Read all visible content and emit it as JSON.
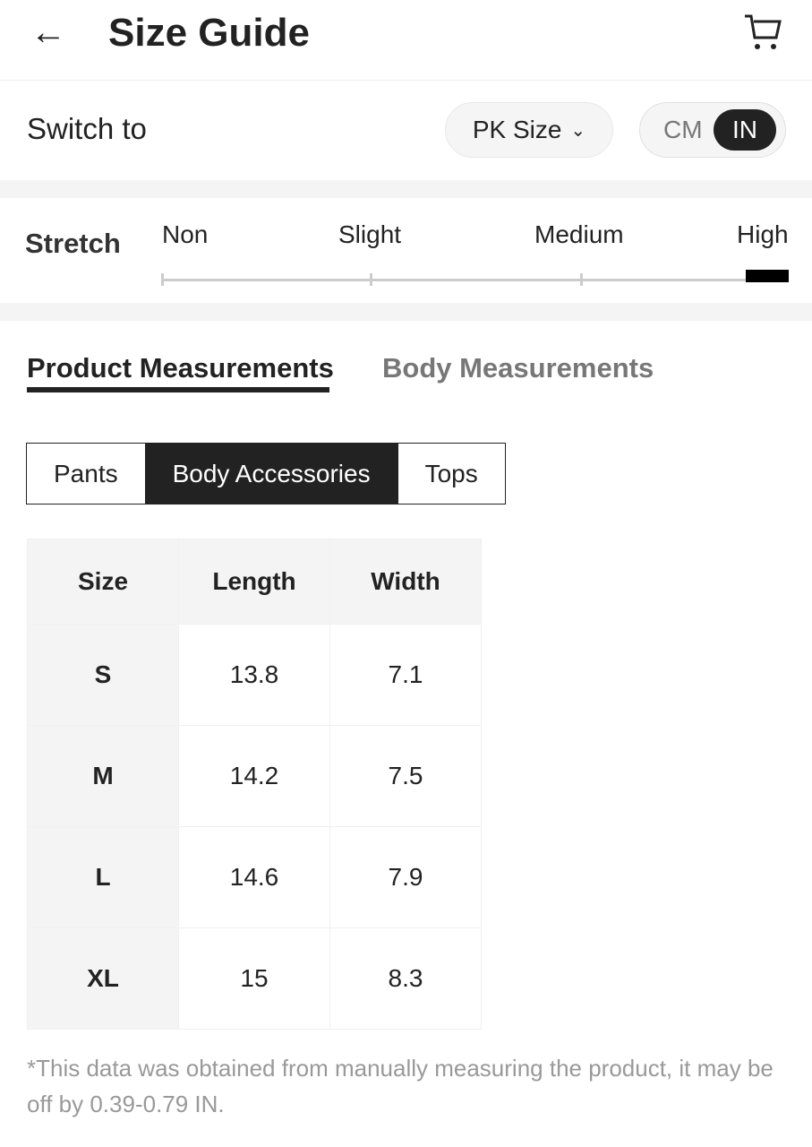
{
  "header": {
    "title": "Size Guide",
    "back_icon": "arrow-left-icon",
    "cart_icon": "cart-icon"
  },
  "switch": {
    "label": "Switch to",
    "size_system": "PK Size",
    "units": [
      "CM",
      "IN"
    ],
    "selected_unit": "IN"
  },
  "stretch": {
    "label": "Stretch",
    "levels": [
      "Non",
      "Slight",
      "Medium",
      "High"
    ],
    "selected": "High"
  },
  "tabs": [
    {
      "label": "Product Measurements",
      "active": true
    },
    {
      "label": "Body Measurements",
      "active": false
    }
  ],
  "categories": [
    {
      "label": "Pants"
    },
    {
      "label": "Body Accessories",
      "active": true
    },
    {
      "label": "Tops"
    }
  ],
  "table": {
    "headers": [
      "Size",
      "Length",
      "Width"
    ],
    "rows": [
      [
        "S",
        "13.8",
        "7.1"
      ],
      [
        "M",
        "14.2",
        "7.5"
      ],
      [
        "L",
        "14.6",
        "7.9"
      ],
      [
        "XL",
        "15",
        "8.3"
      ]
    ]
  },
  "note": "*This data was obtained from manually measuring the product, it may be off by 0.39-0.79 IN."
}
